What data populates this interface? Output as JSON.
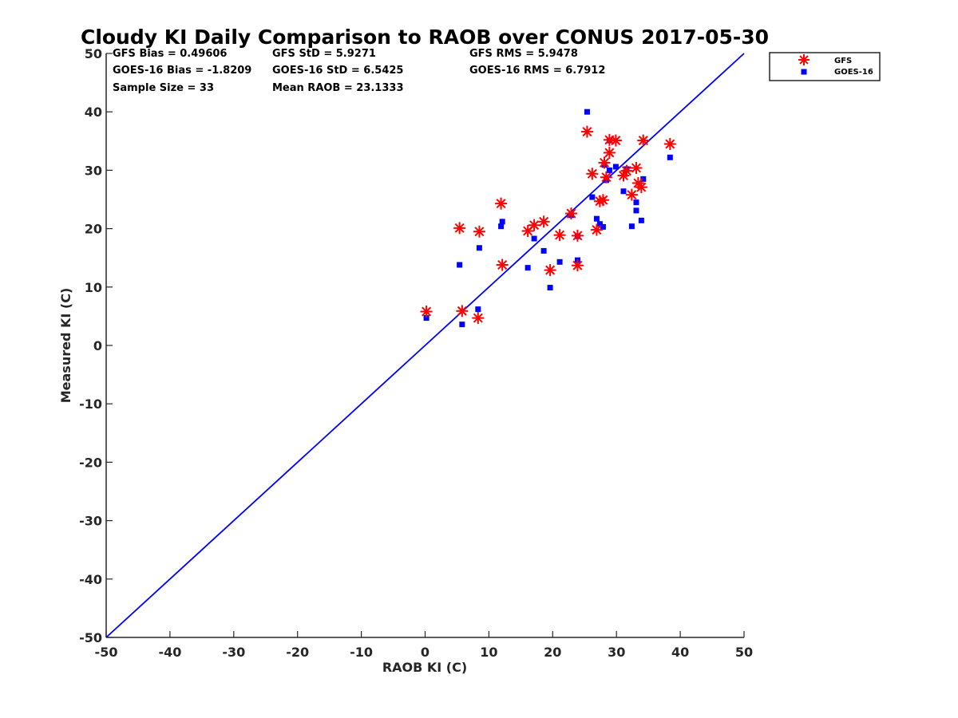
{
  "chart_data": {
    "type": "scatter",
    "title": "Cloudy KI Daily Comparison to RAOB over CONUS 2017-05-30",
    "xlabel": "RAOB KI (C)",
    "ylabel": "Measured KI (C)",
    "xlim": [
      -50,
      50
    ],
    "ylim": [
      -50,
      50
    ],
    "xticks": [
      "-50",
      "-40",
      "-30",
      "-20",
      "-10",
      "0",
      "10",
      "20",
      "30",
      "40",
      "50"
    ],
    "yticks": [
      "50",
      "40",
      "30",
      "20",
      "10",
      "0",
      "-10",
      "-20",
      "-30",
      "-40",
      "-50"
    ],
    "grid": false,
    "reference_line": {
      "slope": 1,
      "intercept": 0,
      "color": "#0000ff"
    },
    "stats": [
      [
        "GFS Bias = 0.49606",
        "GFS StD = 5.9271",
        "GFS RMS = 5.9478"
      ],
      [
        "GOES-16 Bias = -1.8209",
        "GOES-16 StD = 6.5425",
        "GOES-16 RMS = 6.7912"
      ],
      [
        "Sample Size = 33",
        "Mean RAOB = 23.1333",
        ""
      ]
    ],
    "legend_position": "outside-top-right",
    "series": [
      {
        "name": "GFS",
        "marker": "asterisk",
        "color": "#ff0000",
        "points": [
          [
            0.2,
            5.8
          ],
          [
            5.8,
            5.9
          ],
          [
            8.3,
            4.7
          ],
          [
            5.4,
            20.1
          ],
          [
            8.5,
            19.5
          ],
          [
            11.9,
            24.3
          ],
          [
            12.1,
            13.8
          ],
          [
            16.1,
            19.6
          ],
          [
            17.1,
            20.6
          ],
          [
            18.6,
            21.2
          ],
          [
            19.6,
            12.9
          ],
          [
            21.1,
            18.9
          ],
          [
            22.9,
            22.6
          ],
          [
            23.9,
            18.8
          ],
          [
            23.9,
            13.7
          ],
          [
            25.4,
            36.6
          ],
          [
            26.2,
            29.4
          ],
          [
            26.9,
            19.8
          ],
          [
            27.4,
            24.7
          ],
          [
            27.9,
            24.9
          ],
          [
            28.1,
            31.3
          ],
          [
            28.4,
            28.8
          ],
          [
            28.9,
            33.0
          ],
          [
            28.9,
            35.2
          ],
          [
            29.9,
            35.1
          ],
          [
            31.1,
            29.1
          ],
          [
            32.4,
            25.8
          ],
          [
            33.1,
            30.4
          ],
          [
            33.4,
            27.8
          ],
          [
            33.9,
            27.1
          ],
          [
            34.2,
            35.1
          ],
          [
            38.4,
            34.5
          ],
          [
            31.6,
            29.9
          ]
        ]
      },
      {
        "name": "GOES-16",
        "marker": "square",
        "color": "#0000ff",
        "points": [
          [
            0.2,
            4.7
          ],
          [
            5.4,
            13.8
          ],
          [
            5.8,
            3.6
          ],
          [
            8.3,
            6.2
          ],
          [
            8.5,
            16.7
          ],
          [
            11.9,
            20.4
          ],
          [
            12.1,
            21.2
          ],
          [
            16.1,
            13.3
          ],
          [
            17.1,
            18.3
          ],
          [
            18.6,
            16.2
          ],
          [
            19.6,
            9.9
          ],
          [
            21.1,
            14.3
          ],
          [
            22.9,
            22.3
          ],
          [
            23.9,
            18.7
          ],
          [
            23.9,
            14.6
          ],
          [
            25.4,
            40.0
          ],
          [
            26.2,
            25.4
          ],
          [
            26.9,
            21.7
          ],
          [
            27.4,
            20.8
          ],
          [
            27.9,
            20.3
          ],
          [
            28.1,
            30.9
          ],
          [
            28.4,
            28.3
          ],
          [
            28.9,
            30.0
          ],
          [
            28.9,
            35.1
          ],
          [
            29.9,
            30.6
          ],
          [
            31.1,
            26.4
          ],
          [
            32.4,
            20.4
          ],
          [
            33.1,
            24.5
          ],
          [
            33.1,
            23.1
          ],
          [
            33.9,
            21.4
          ],
          [
            34.2,
            28.5
          ],
          [
            38.4,
            32.2
          ],
          [
            31.6,
            30.2
          ]
        ]
      }
    ]
  }
}
